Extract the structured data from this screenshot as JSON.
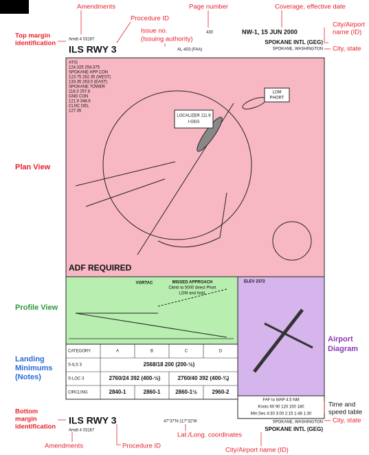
{
  "annotations": {
    "amendments_top": "Amendments",
    "procedure_id_top": "Procedure ID",
    "issue_no": [
      "Issue no.",
      "(Issuing authority)"
    ],
    "page_number": "Page number",
    "coverage": "Coverage, effective date",
    "city_airport_top": [
      "City/Airport",
      "name (ID)"
    ],
    "city_state_top": "City, state",
    "top_margin": [
      "Top margin",
      "identification"
    ],
    "time_speed": [
      "Time and",
      "speed table"
    ],
    "city_state_bottom": "City, state",
    "bottom_margin": [
      "Bottom",
      "margin",
      "identification"
    ],
    "amendments_bottom": "Amendments",
    "procedure_id_bottom": "Procedure ID",
    "lat_long": "Lat./Long. coordinates",
    "city_airport_bottom": "City/Airport name (ID)"
  },
  "sections": {
    "plan": "Plan View",
    "profile": "Profile View",
    "minimums": [
      "Landing",
      "Minimums",
      "(Notes)"
    ],
    "airport": [
      "Airport",
      "Diagram"
    ]
  },
  "plate": {
    "amdt_top": "Amdt 4  03167",
    "procedure_top": "ILS RWY 3",
    "page": "430",
    "authority": "AL-403 (FAA)",
    "coverage": "NW-1, 15 JUN 2000",
    "airport_top": "SPOKANE INTL (GEG)",
    "city_top": "SPOKANE, WASHINGTON",
    "comms": [
      "ATIS",
      "124.325 254.375",
      "SPOKANE APP CON",
      "123.75 282.35 (WEST)",
      "133.35 263.0 (EAST)",
      "SPOKANE TOWER",
      "118.3 257.8",
      "GND CON",
      "121.9 348.6",
      "CLNC DEL",
      "127.35"
    ],
    "localizer": [
      "LOCALIZER 111.9",
      "I-GEG"
    ],
    "lom": [
      "LOM",
      "PHORT"
    ],
    "adf": "ADF REQUIRED",
    "vortac": "VORTAC",
    "missed": [
      "MISSED APPROACH",
      "Climb to 5000 direct Phort",
      "LOM and hold."
    ],
    "elev": "ELEV 2372",
    "minimums": [
      [
        "CATEGORY",
        "A",
        "B",
        "C",
        "D"
      ],
      [
        "S-ILS 3",
        "2568/18  200 (200-½)"
      ],
      [
        "S-LOC 3",
        "2760/24  392 (400-½)",
        "2760/40  392 (400-¾)"
      ],
      [
        "CIRCLING",
        "2840-1",
        "2860-1",
        "2860-1½",
        "2960-2"
      ]
    ],
    "time_table": [
      "FAF to MAP 4.5 NM",
      "Knots  60  90  120  150  180",
      "Min:Sec 4:30 3:00 2:15 1:48 1:30"
    ],
    "procedure_bottom": "ILS RWY 3",
    "amdt_bottom": "Amdt 4  03167",
    "latlong": "47°37'N-117°32'W",
    "city_bottom": "SPOKANE, WASHINGTON",
    "airport_bottom": "SPOKANE INTL (GEG)"
  }
}
